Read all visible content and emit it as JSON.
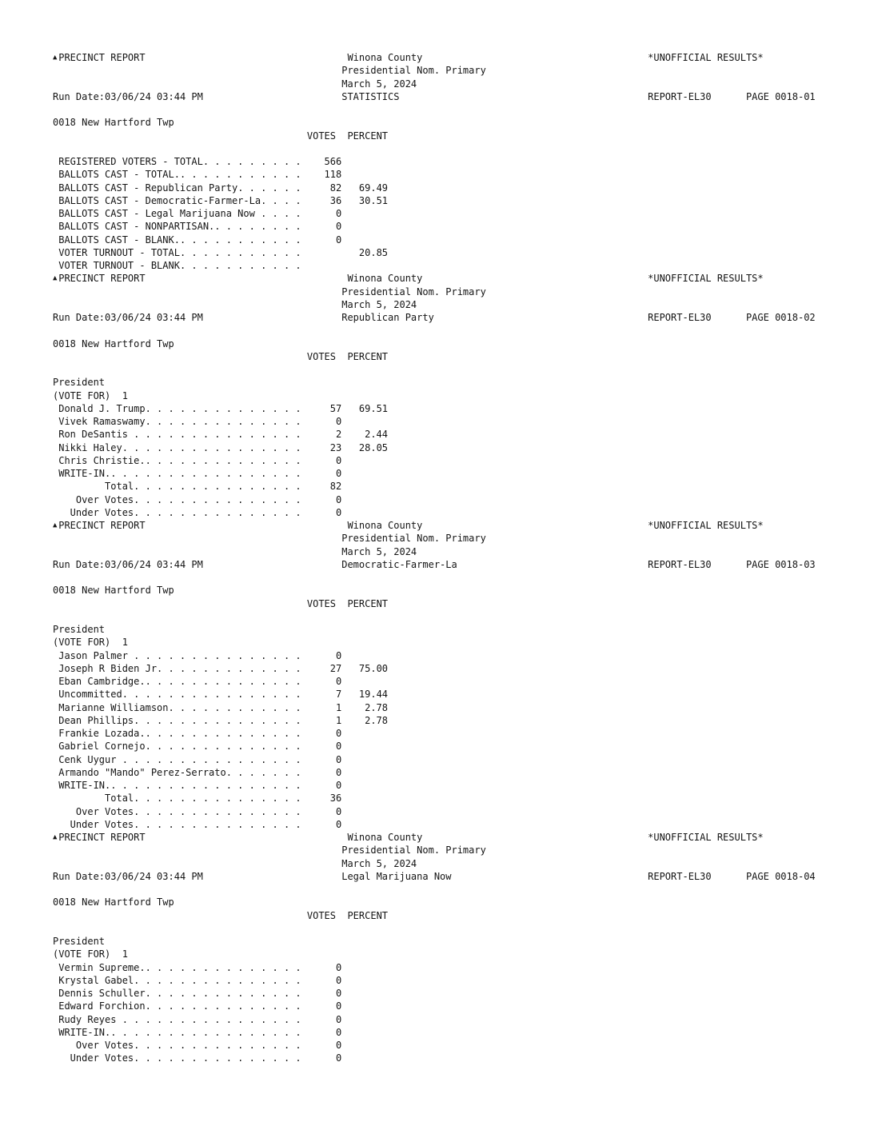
{
  "pages": [
    {
      "report_title": "PRECINCT REPORT",
      "county": "Winona County",
      "election": "Presidential Nom. Primary",
      "date": "March 5, 2024",
      "run_date": "Run Date:03/06/24 03:44 PM",
      "section": "STATISTICS",
      "status": "*UNOFFICIAL RESULTS*",
      "report_id": "REPORT-EL30",
      "page": "PAGE 0018-01",
      "precinct": "0018 New Hartford Twp",
      "col_votes": "VOTES",
      "col_percent": "PERCENT",
      "rows": [
        {
          "label": "REGISTERED VOTERS - TOTAL",
          "votes": "566",
          "percent": ""
        },
        {
          "label": "BALLOTS CAST - TOTAL.",
          "votes": "118",
          "percent": ""
        },
        {
          "label": "BALLOTS CAST - Republican Party",
          "votes": "82",
          "percent": "69.49"
        },
        {
          "label": "BALLOTS CAST - Democratic-Farmer-La.",
          "votes": "36",
          "percent": "30.51"
        },
        {
          "label": "BALLOTS CAST - Legal Marijuana Now",
          "votes": "0",
          "percent": ""
        },
        {
          "label": "BALLOTS CAST - NONPARTISAN.",
          "votes": "0",
          "percent": ""
        },
        {
          "label": "BALLOTS CAST - BLANK.",
          "votes": "0",
          "percent": ""
        },
        {
          "label": "VOTER TURNOUT - TOTAL",
          "votes": "",
          "percent": "20.85"
        },
        {
          "label": "VOTER TURNOUT - BLANK",
          "votes": "",
          "percent": ""
        }
      ]
    },
    {
      "report_title": "PRECINCT REPORT",
      "county": "Winona County",
      "election": "Presidential Nom. Primary",
      "date": "March 5, 2024",
      "run_date": "Run Date:03/06/24 03:44 PM",
      "section": "Republican Party",
      "status": "*UNOFFICIAL RESULTS*",
      "report_id": "REPORT-EL30",
      "page": "PAGE 0018-02",
      "precinct": "0018 New Hartford Twp",
      "col_votes": "VOTES",
      "col_percent": "PERCENT",
      "office": "President",
      "vote_for": "(VOTE FOR)  1",
      "rows": [
        {
          "label": "Donald J. Trump",
          "votes": "57",
          "percent": "69.51"
        },
        {
          "label": "Vivek Ramaswamy",
          "votes": "0",
          "percent": ""
        },
        {
          "label": "Ron DeSantis",
          "votes": "2",
          "percent": "2.44"
        },
        {
          "label": "Nikki Haley.",
          "votes": "23",
          "percent": "28.05"
        },
        {
          "label": "Chris Christie.",
          "votes": "0",
          "percent": ""
        },
        {
          "label": "WRITE-IN.",
          "votes": "0",
          "percent": ""
        },
        {
          "label": "Total",
          "votes": "82",
          "percent": "",
          "indent": 9
        },
        {
          "label": "Over Votes",
          "votes": "0",
          "percent": "",
          "indent": 4
        },
        {
          "label": "Under Votes",
          "votes": "0",
          "percent": "",
          "indent": 3
        }
      ]
    },
    {
      "report_title": "PRECINCT REPORT",
      "county": "Winona County",
      "election": "Presidential Nom. Primary",
      "date": "March 5, 2024",
      "run_date": "Run Date:03/06/24 03:44 PM",
      "section": "Democratic-Farmer-La",
      "status": "*UNOFFICIAL RESULTS*",
      "report_id": "REPORT-EL30",
      "page": "PAGE 0018-03",
      "precinct": "0018 New Hartford Twp",
      "col_votes": "VOTES",
      "col_percent": "PERCENT",
      "office": "President",
      "vote_for": "(VOTE FOR)  1",
      "rows": [
        {
          "label": "Jason Palmer",
          "votes": "0",
          "percent": ""
        },
        {
          "label": "Joseph R Biden Jr.",
          "votes": "27",
          "percent": "75.00"
        },
        {
          "label": "Eban Cambridge.",
          "votes": "0",
          "percent": ""
        },
        {
          "label": "Uncommitted.",
          "votes": "7",
          "percent": "19.44"
        },
        {
          "label": "Marianne Williamson",
          "votes": "1",
          "percent": "2.78"
        },
        {
          "label": "Dean Phillips",
          "votes": "1",
          "percent": "2.78"
        },
        {
          "label": "Frankie Lozada.",
          "votes": "0",
          "percent": ""
        },
        {
          "label": "Gabriel Cornejo",
          "votes": "0",
          "percent": ""
        },
        {
          "label": "Cenk Uygur",
          "votes": "0",
          "percent": ""
        },
        {
          "label": "Armando \"Mando\" Perez-Serrato.",
          "votes": "0",
          "percent": ""
        },
        {
          "label": "WRITE-IN.",
          "votes": "0",
          "percent": ""
        },
        {
          "label": "Total",
          "votes": "36",
          "percent": "",
          "indent": 9
        },
        {
          "label": "Over Votes",
          "votes": "0",
          "percent": "",
          "indent": 4
        },
        {
          "label": "Under Votes",
          "votes": "0",
          "percent": "",
          "indent": 3
        }
      ]
    },
    {
      "report_title": "PRECINCT REPORT",
      "county": "Winona County",
      "election": "Presidential Nom. Primary",
      "date": "March 5, 2024",
      "run_date": "Run Date:03/06/24 03:44 PM",
      "section": "Legal Marijuana Now",
      "status": "*UNOFFICIAL RESULTS*",
      "report_id": "REPORT-EL30",
      "page": "PAGE 0018-04",
      "precinct": "0018 New Hartford Twp",
      "col_votes": "VOTES",
      "col_percent": "PERCENT",
      "office": "President",
      "vote_for": "(VOTE FOR)  1",
      "rows": [
        {
          "label": "Vermin Supreme.",
          "votes": "0",
          "percent": ""
        },
        {
          "label": "Krystal Gabel",
          "votes": "0",
          "percent": ""
        },
        {
          "label": "Dennis Schuller",
          "votes": "0",
          "percent": ""
        },
        {
          "label": "Edward Forchion",
          "votes": "0",
          "percent": ""
        },
        {
          "label": "Rudy Reyes",
          "votes": "0",
          "percent": ""
        },
        {
          "label": "WRITE-IN.",
          "votes": "0",
          "percent": ""
        },
        {
          "label": "Over Votes",
          "votes": "0",
          "percent": "",
          "indent": 4
        },
        {
          "label": "Under Votes",
          "votes": "0",
          "percent": "",
          "indent": 3
        }
      ]
    }
  ]
}
